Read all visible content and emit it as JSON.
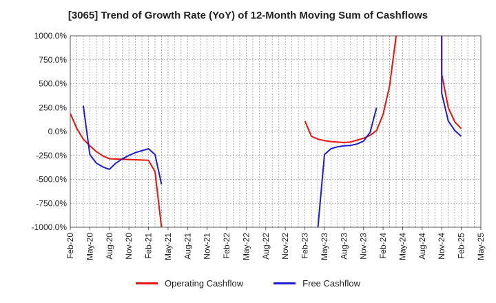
{
  "chart_data": {
    "type": "line",
    "title": "[3065]  Trend of Growth Rate (YoY) of 12-Month Moving Sum of Cashflows",
    "xlabel": "",
    "ylabel": "",
    "ylim": [
      -1000,
      1000
    ],
    "yticks": [
      1000,
      750,
      500,
      250,
      0,
      -250,
      -500,
      -750,
      -1000
    ],
    "ytick_labels": [
      "1000.0%",
      "750.0%",
      "500.0%",
      "250.0%",
      "0.0%",
      "-250.0%",
      "-500.0%",
      "-750.0%",
      "-1000.0%"
    ],
    "xtick_labels": [
      "Feb-20",
      "May-20",
      "Aug-20",
      "Nov-20",
      "Feb-21",
      "May-21",
      "Aug-21",
      "Nov-21",
      "Feb-22",
      "May-22",
      "Aug-22",
      "Nov-22",
      "Feb-23",
      "May-23",
      "Aug-23",
      "Nov-23",
      "Feb-24",
      "May-24",
      "Aug-24",
      "Nov-24",
      "Feb-25",
      "May-25"
    ],
    "grid": true,
    "legend_position": "bottom",
    "series": [
      {
        "name": "Operating Cashflow",
        "color": "#e8120c",
        "points": [
          [
            "2020-02",
            190
          ],
          [
            "2020-03",
            30
          ],
          [
            "2020-04",
            -80
          ],
          [
            "2020-05",
            -150
          ],
          [
            "2020-06",
            -210
          ],
          [
            "2020-07",
            -255
          ],
          [
            "2020-08",
            -285
          ],
          [
            "2020-10",
            -290
          ],
          [
            "2020-12",
            -295
          ],
          [
            "2021-02",
            -300
          ],
          [
            "2021-03",
            -420
          ],
          [
            "2021-04",
            -1000
          ]
        ]
      },
      {
        "name": "Operating Cashflow",
        "color": "#e8120c",
        "points": [
          [
            "2023-02",
            110
          ],
          [
            "2023-03",
            -50
          ],
          [
            "2023-04",
            -80
          ],
          [
            "2023-05",
            -95
          ],
          [
            "2023-06",
            -105
          ],
          [
            "2023-07",
            -110
          ],
          [
            "2023-08",
            -115
          ],
          [
            "2023-09",
            -110
          ],
          [
            "2023-10",
            -90
          ],
          [
            "2023-11",
            -70
          ],
          [
            "2023-12",
            -40
          ],
          [
            "2024-01",
            10
          ],
          [
            "2024-02",
            180
          ],
          [
            "2024-03",
            480
          ],
          [
            "2024-04",
            1000
          ]
        ]
      },
      {
        "name": "Operating Cashflow",
        "color": "#e8120c",
        "points": [
          [
            "2024-11",
            1000
          ],
          [
            "2024-11",
            600
          ],
          [
            "2024-12",
            250
          ],
          [
            "2025-01",
            100
          ],
          [
            "2025-02",
            30
          ]
        ]
      },
      {
        "name": "Free Cashflow",
        "color": "#1c1cd4",
        "points": [
          [
            "2020-04",
            270
          ],
          [
            "2020-05",
            -240
          ],
          [
            "2020-06",
            -330
          ],
          [
            "2020-07",
            -370
          ],
          [
            "2020-08",
            -395
          ],
          [
            "2020-09",
            -330
          ],
          [
            "2020-10",
            -285
          ],
          [
            "2020-11",
            -250
          ],
          [
            "2020-12",
            -220
          ],
          [
            "2021-01",
            -200
          ],
          [
            "2021-02",
            -180
          ],
          [
            "2021-03",
            -240
          ],
          [
            "2021-04",
            -550
          ]
        ]
      },
      {
        "name": "Free Cashflow",
        "color": "#1c1cd4",
        "points": [
          [
            "2023-04",
            -1000
          ],
          [
            "2023-05",
            -240
          ],
          [
            "2023-06",
            -180
          ],
          [
            "2023-07",
            -160
          ],
          [
            "2023-08",
            -150
          ],
          [
            "2023-09",
            -145
          ],
          [
            "2023-10",
            -130
          ],
          [
            "2023-11",
            -100
          ],
          [
            "2023-12",
            -10
          ],
          [
            "2024-01",
            250
          ]
        ]
      },
      {
        "name": "Free Cashflow",
        "color": "#1c1cd4",
        "points": [
          [
            "2024-11",
            1000
          ],
          [
            "2024-11",
            400
          ],
          [
            "2024-12",
            110
          ],
          [
            "2025-01",
            10
          ],
          [
            "2025-02",
            -50
          ]
        ]
      }
    ],
    "legend": [
      {
        "name": "Operating Cashflow",
        "color": "#e8120c"
      },
      {
        "name": "Free Cashflow",
        "color": "#1c1cd4"
      }
    ]
  }
}
